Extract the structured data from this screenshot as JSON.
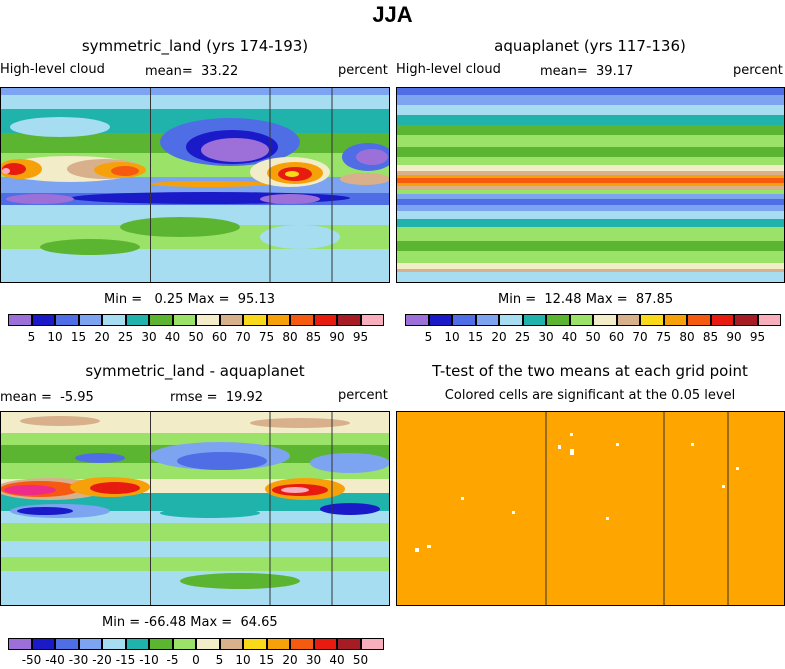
{
  "main_title": "JJA",
  "colors": {
    "level_palette": [
      "#9c6fd9",
      "#1a1ac8",
      "#4f6ee6",
      "#7da4f0",
      "#a6ddf0",
      "#1fb3ac",
      "#5cb530",
      "#9ae368",
      "#f3ecc8",
      "#d8b08c",
      "#fad81a",
      "#f7a10a",
      "#f55a10",
      "#e81b10",
      "#a61b24",
      "#f9aebd",
      "#ee2b8a"
    ],
    "test_fill": "#ffa500"
  },
  "chart_data": [
    {
      "type": "contour",
      "name": "symmetric_land",
      "title": "symmetric_land (yrs 174-193)",
      "left_label": "High-level cloud",
      "mean_label": "mean=",
      "mean": "33.22",
      "units": "percent",
      "min_label": "Min =",
      "min": "0.25",
      "max_label": "Max =",
      "max": "95.13",
      "levels": [
        "5",
        "10",
        "15",
        "20",
        "25",
        "30",
        "40",
        "50",
        "60",
        "70",
        "75",
        "80",
        "85",
        "90",
        "95"
      ]
    },
    {
      "type": "contour",
      "name": "aquaplanet",
      "title": "aquaplanet (yrs 117-136)",
      "left_label": "High-level cloud",
      "mean_label": "mean=",
      "mean": "39.17",
      "units": "percent",
      "min_label": "Min =",
      "min": "12.48",
      "max_label": "Max =",
      "max": "87.85",
      "levels": [
        "5",
        "10",
        "15",
        "20",
        "25",
        "30",
        "40",
        "50",
        "60",
        "70",
        "75",
        "80",
        "85",
        "90",
        "95"
      ]
    },
    {
      "type": "contour",
      "name": "difference",
      "title": "symmetric_land - aquaplanet",
      "mean_label": "mean =",
      "mean": "-5.95",
      "rmse_label": "rmse =",
      "rmse": "19.92",
      "units": "percent",
      "min_label": "Min =",
      "min": "-66.48",
      "max_label": "Max =",
      "max": "64.65",
      "levels": [
        "-50",
        "-40",
        "-30",
        "-20",
        "-15",
        "-10",
        "-5",
        "0",
        "5",
        "10",
        "15",
        "20",
        "30",
        "40",
        "50"
      ]
    },
    {
      "type": "significance_map",
      "name": "ttest",
      "title": "T-test of the two means at each grid point",
      "subtitle": "Colored cells are significant at the 0.05 level"
    }
  ]
}
